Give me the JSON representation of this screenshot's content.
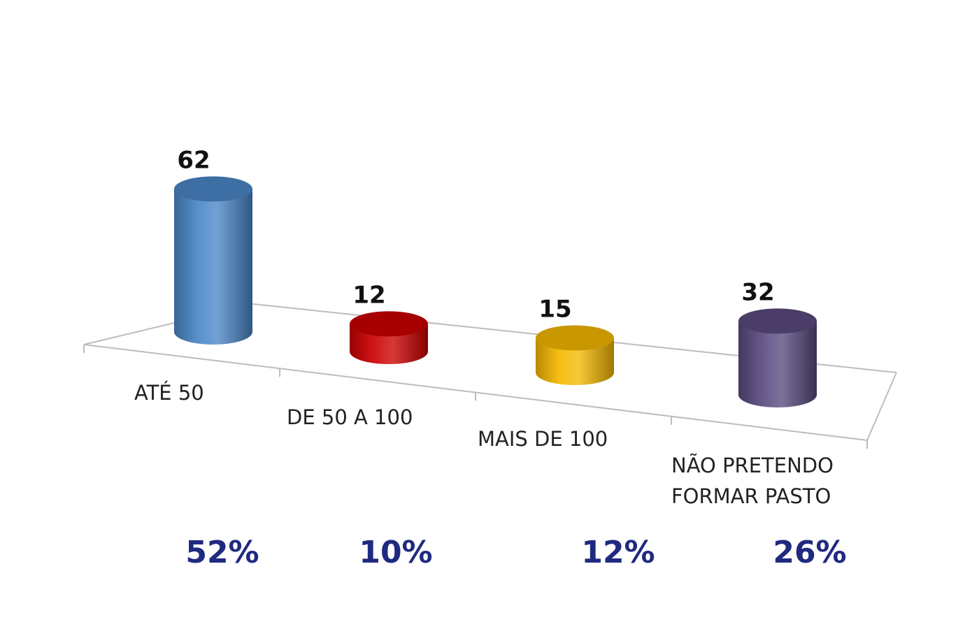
{
  "chart_data": {
    "type": "bar",
    "style": "3d-cylinder",
    "categories": [
      [
        "ATÉ 50"
      ],
      [
        "DE 50 A 100"
      ],
      [
        "MAIS DE 100"
      ],
      [
        "NÃO PRETENDO",
        "FORMAR PASTO"
      ]
    ],
    "values": [
      62,
      12,
      15,
      32
    ],
    "percentages": [
      "52%",
      "10%",
      "12%",
      "26%"
    ],
    "colors": [
      "#4a86c8",
      "#cc0000",
      "#f5b800",
      "#5a4a80"
    ],
    "legend": "none",
    "grid": false
  }
}
